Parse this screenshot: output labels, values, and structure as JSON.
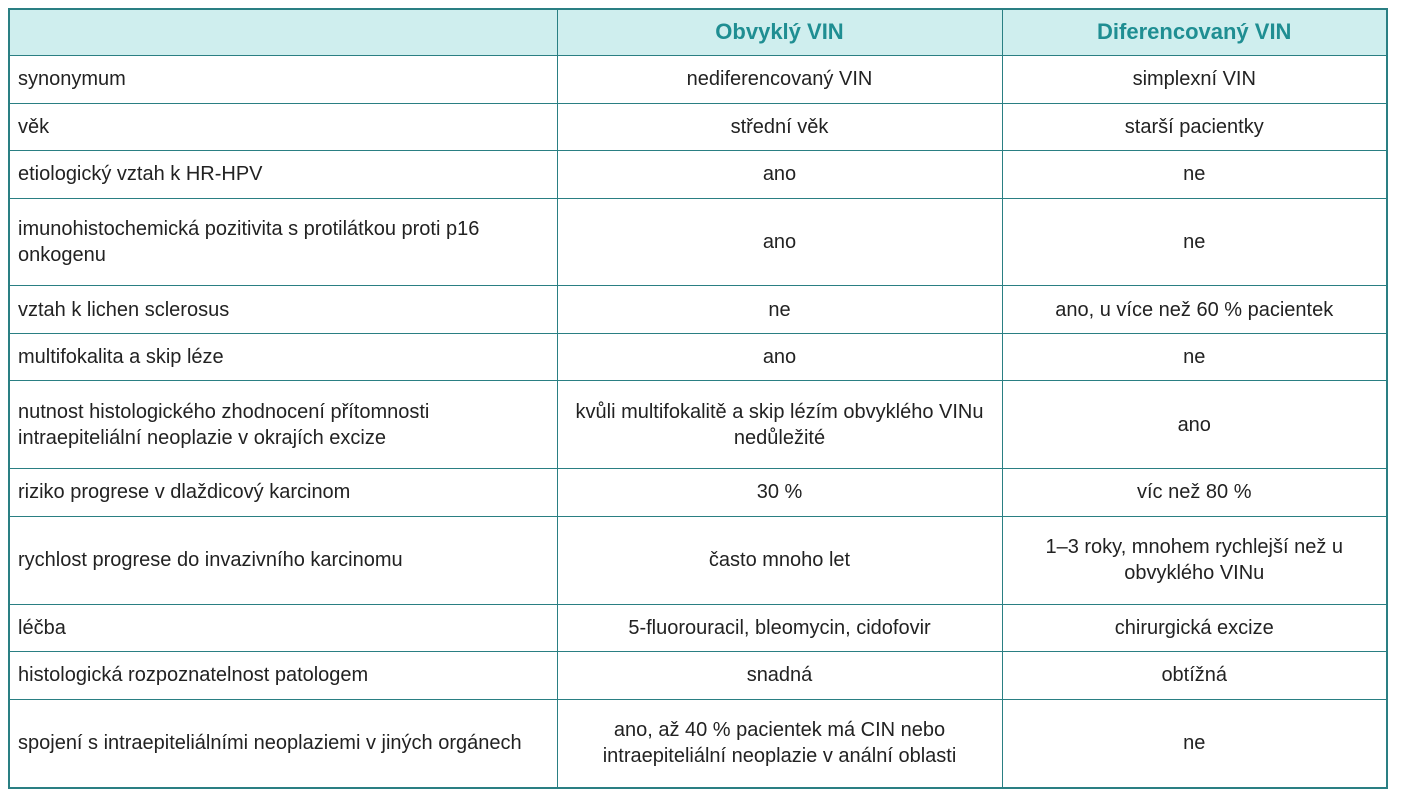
{
  "header": {
    "blank": "",
    "col1": "Obvyklý VIN",
    "col2": "Diferencovaný VIN"
  },
  "rows": [
    {
      "label": "synonymum",
      "a": "nediferencovaný VIN",
      "b": "simplexní VIN"
    },
    {
      "label": "věk",
      "a": "střední věk",
      "b": "starší pacientky"
    },
    {
      "label": "etiologický vztah k HR-HPV",
      "a": "ano",
      "b": "ne"
    },
    {
      "label": "imunohistochemická pozitivita s protilátkou proti p16 onkogenu",
      "a": "ano",
      "b": "ne"
    },
    {
      "label": "vztah k lichen sclerosus",
      "a": "ne",
      "b": "ano, u více než 60 % pacientek"
    },
    {
      "label": "multifokalita a skip léze",
      "a": "ano",
      "b": "ne"
    },
    {
      "label": "nutnost histologického zhodnocení přítomnosti intraepiteliální neoplazie v okrajích excize",
      "a": "kvůli multifokalitě a skip lézím obvyklého VINu nedůležité",
      "b": "ano"
    },
    {
      "label": "riziko progrese v dlaždicový karcinom",
      "a": "30 %",
      "b": "víc než 80 %"
    },
    {
      "label": "rychlost progrese do invazivního karcinomu",
      "a": "často mnoho let",
      "b": "1–3 roky, mnohem rychlejší než u obvyklého VINu"
    },
    {
      "label": "léčba",
      "a": "5-fluorouracil, bleomycin, cidofovir",
      "b": "chirurgická excize"
    },
    {
      "label": "histologická rozpoznatelnost patologem",
      "a": "snadná",
      "b": "obtížná"
    },
    {
      "label": "spojení s intraepiteliálními neoplaziemi v jiných orgánech",
      "a": "ano, až 40 % pacientek má CIN nebo intraepiteliální neoplazie v anální oblasti",
      "b": "ne"
    }
  ]
}
